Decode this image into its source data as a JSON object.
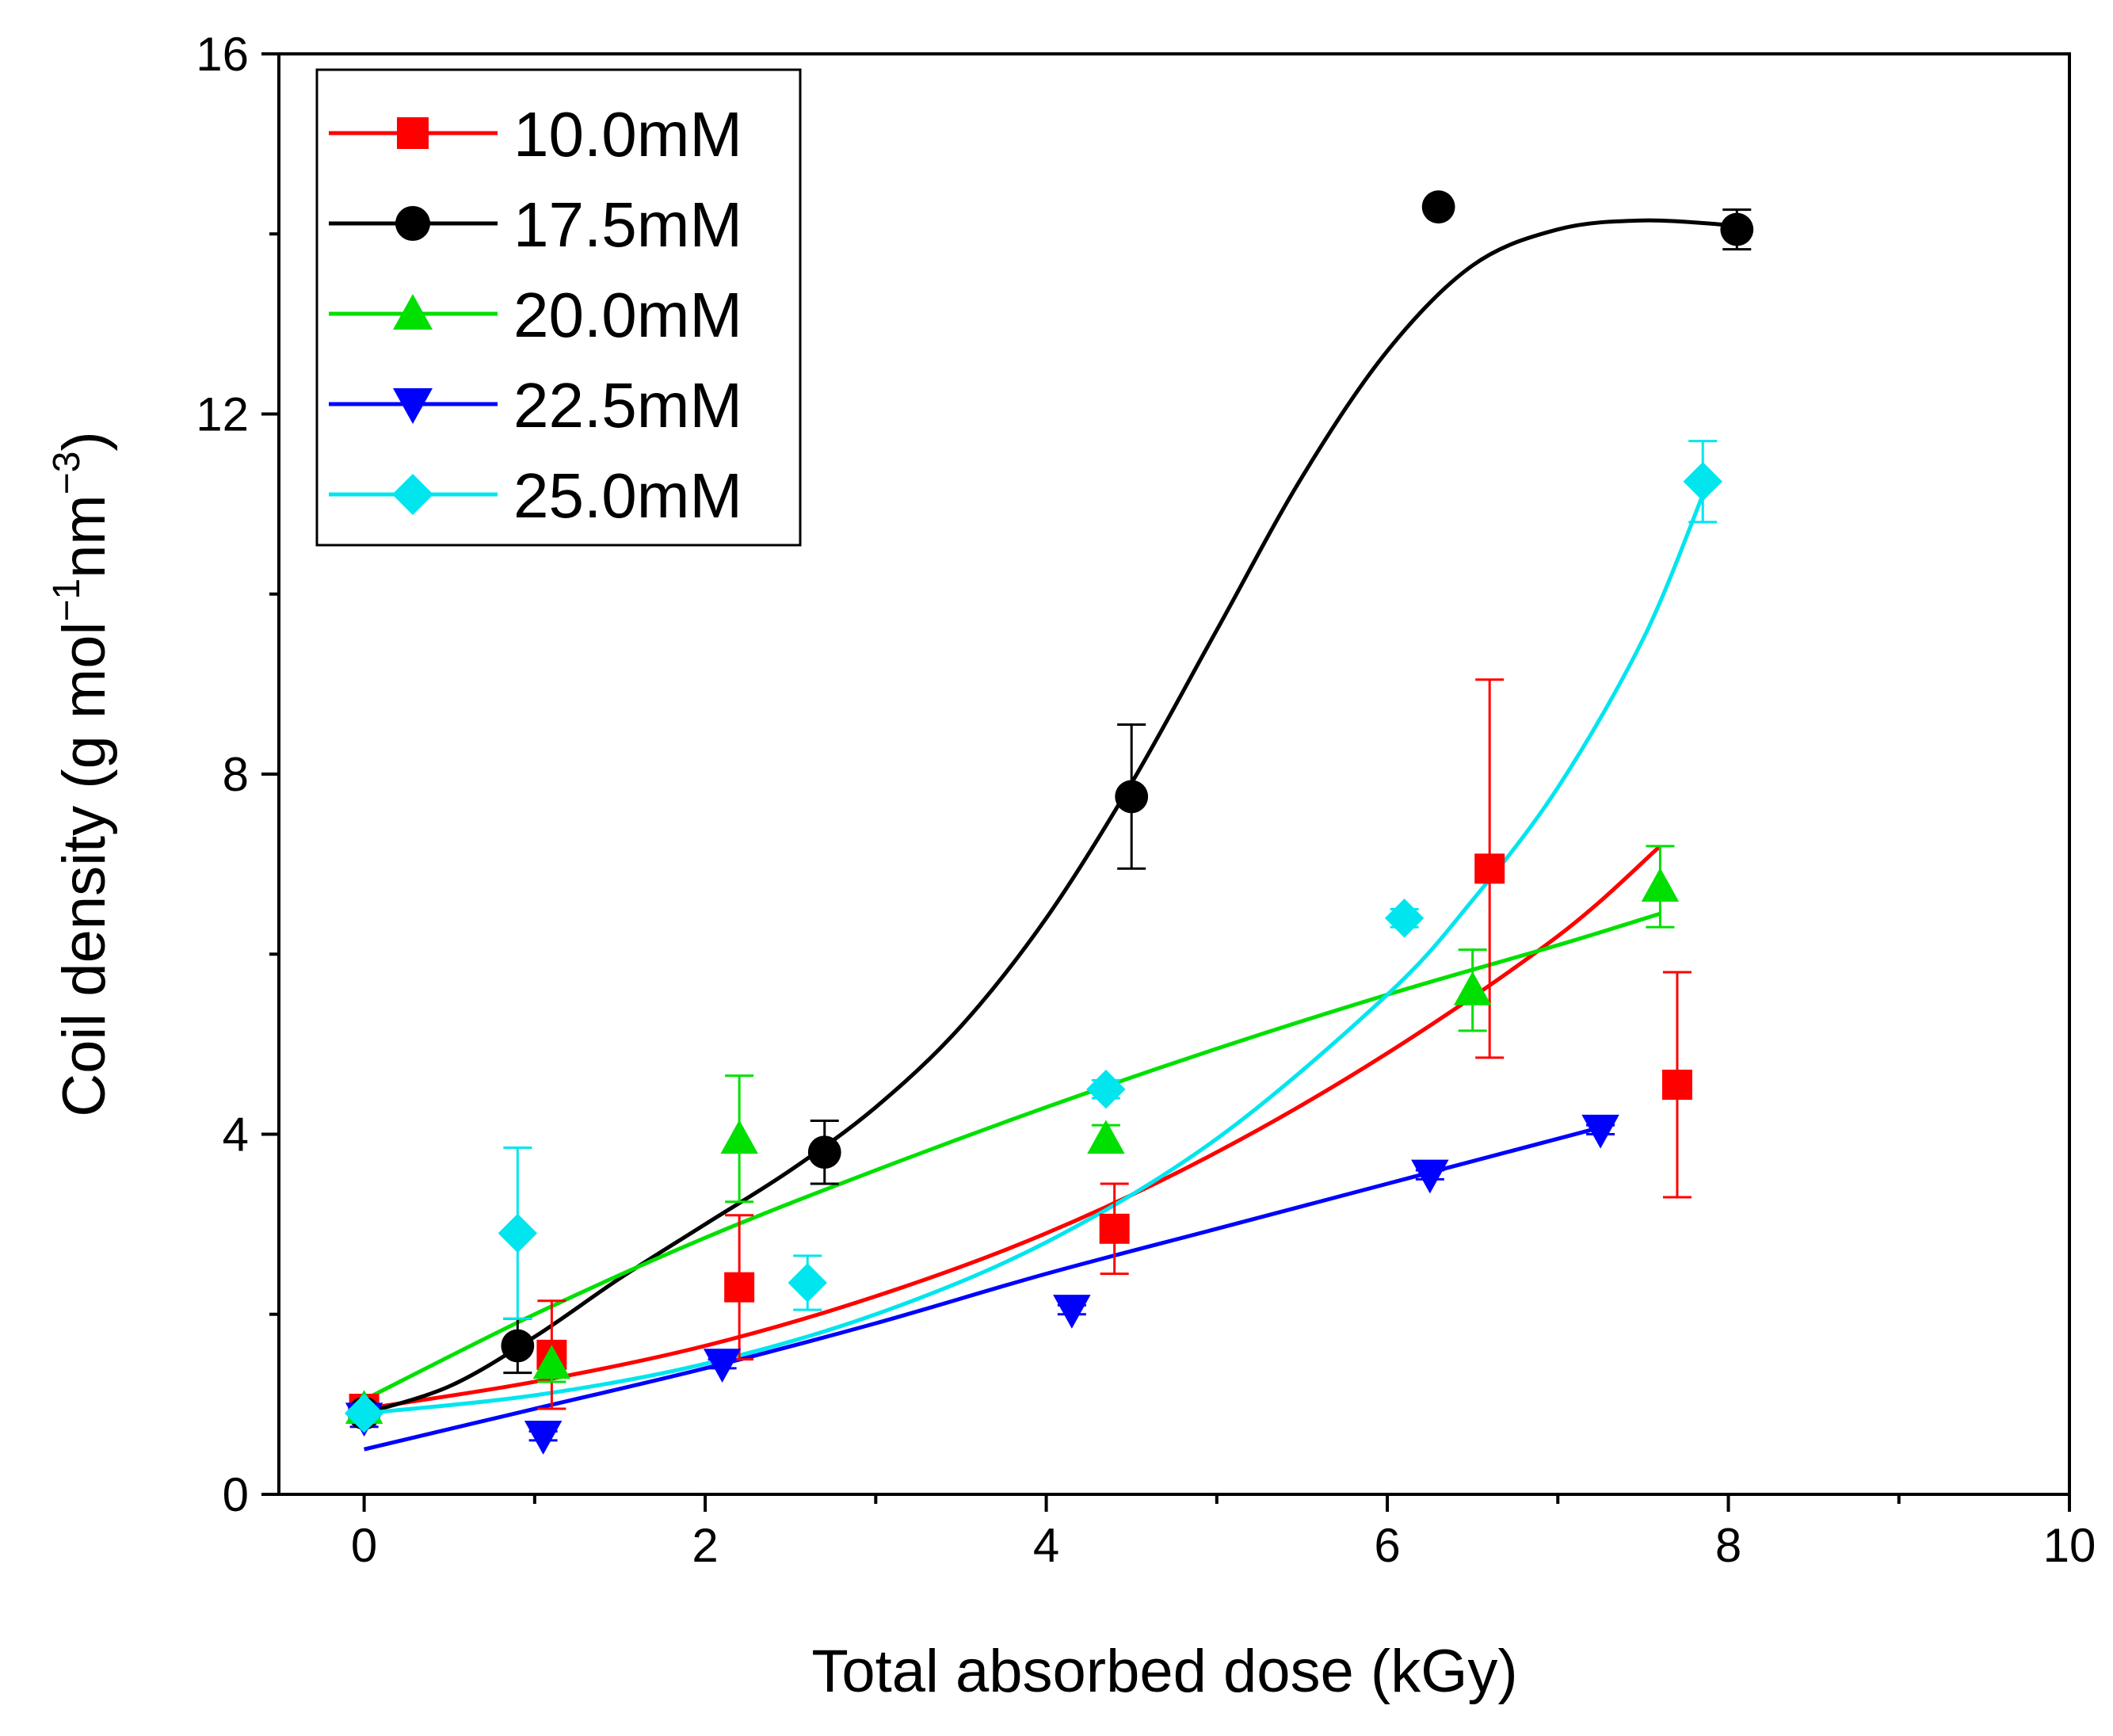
{
  "chart_data": {
    "type": "scatter",
    "xlabel": "Total absorbed dose (kGy)",
    "ylabel_main": "Coil density (g mol",
    "ylabel_sup1": "−1",
    "ylabel_mid": "nm",
    "ylabel_sup2": "−3",
    "ylabel_end": ")",
    "xlim": [
      -0.5,
      10
    ],
    "ylim": [
      0,
      16
    ],
    "xticks": [
      "0",
      "2",
      "4",
      "6",
      "8",
      "10"
    ],
    "yticks": [
      "0",
      "4",
      "8",
      "12",
      "16"
    ],
    "legend_position": "top-left",
    "series": [
      {
        "name": "10.0mM",
        "color": "#ff0000",
        "marker": "square",
        "points": [
          {
            "x": 0.0,
            "y": 0.95,
            "err": 0.1
          },
          {
            "x": 1.1,
            "y": 1.55,
            "err": 0.6
          },
          {
            "x": 2.2,
            "y": 2.3,
            "err": 0.8
          },
          {
            "x": 4.4,
            "y": 2.95,
            "err": 0.5
          },
          {
            "x": 6.6,
            "y": 6.95,
            "err": 2.1
          },
          {
            "x": 7.7,
            "y": 4.55,
            "err": 1.25
          }
        ],
        "fit": [
          [
            0,
            0.95
          ],
          [
            1,
            1.25
          ],
          [
            2,
            1.65
          ],
          [
            3,
            2.2
          ],
          [
            4,
            2.9
          ],
          [
            5,
            3.8
          ],
          [
            6,
            4.9
          ],
          [
            7,
            6.2
          ],
          [
            7.6,
            7.2
          ]
        ]
      },
      {
        "name": "17.5mM",
        "color": "#000000",
        "marker": "circle",
        "points": [
          {
            "x": 0.0,
            "y": 0.9,
            "err": 0.1
          },
          {
            "x": 0.9,
            "y": 1.65,
            "err": 0.3
          },
          {
            "x": 2.7,
            "y": 3.8,
            "err": 0.35
          },
          {
            "x": 4.5,
            "y": 7.75,
            "err": 0.8
          },
          {
            "x": 6.3,
            "y": 14.3,
            "err": 0.0
          },
          {
            "x": 8.05,
            "y": 14.05,
            "err": 0.22
          }
        ],
        "fit": [
          [
            0,
            0.9
          ],
          [
            0.5,
            1.2
          ],
          [
            1,
            1.75
          ],
          [
            1.5,
            2.4
          ],
          [
            2,
            3.0
          ],
          [
            2.5,
            3.6
          ],
          [
            3,
            4.3
          ],
          [
            3.5,
            5.2
          ],
          [
            4,
            6.4
          ],
          [
            4.5,
            7.9
          ],
          [
            5,
            9.6
          ],
          [
            5.5,
            11.3
          ],
          [
            6,
            12.7
          ],
          [
            6.5,
            13.65
          ],
          [
            7,
            14.05
          ],
          [
            7.5,
            14.15
          ],
          [
            8,
            14.1
          ]
        ]
      },
      {
        "name": "20.0mM",
        "color": "#00e000",
        "marker": "triangle-up",
        "points": [
          {
            "x": 0.0,
            "y": 0.95,
            "err": 0.1
          },
          {
            "x": 1.1,
            "y": 1.45,
            "err": 0.2
          },
          {
            "x": 2.2,
            "y": 3.95,
            "err": 0.7
          },
          {
            "x": 4.35,
            "y": 3.95,
            "err": 0.15
          },
          {
            "x": 6.5,
            "y": 5.6,
            "err": 0.45
          },
          {
            "x": 7.6,
            "y": 6.75,
            "err": 0.45
          }
        ],
        "fit": [
          [
            0,
            1.05
          ],
          [
            1,
            2.0
          ],
          [
            2,
            2.85
          ],
          [
            3,
            3.6
          ],
          [
            4,
            4.3
          ],
          [
            5,
            4.95
          ],
          [
            6,
            5.55
          ],
          [
            7,
            6.1
          ],
          [
            7.6,
            6.45
          ]
        ]
      },
      {
        "name": "22.5mM",
        "color": "#0000ff",
        "marker": "triangle-down",
        "points": [
          {
            "x": 0.0,
            "y": 0.85,
            "err": 0.1
          },
          {
            "x": 1.05,
            "y": 0.65,
            "err": 0.05
          },
          {
            "x": 2.1,
            "y": 1.45,
            "err": 0.05
          },
          {
            "x": 4.15,
            "y": 2.05,
            "err": 0.05
          },
          {
            "x": 6.25,
            "y": 3.55,
            "err": 0.05
          },
          {
            "x": 7.25,
            "y": 4.05,
            "err": 0.05
          }
        ],
        "fit": [
          [
            0,
            0.5
          ],
          [
            1,
            0.95
          ],
          [
            2,
            1.4
          ],
          [
            3,
            1.9
          ],
          [
            4,
            2.45
          ],
          [
            5,
            2.95
          ],
          [
            6,
            3.45
          ],
          [
            7,
            3.95
          ],
          [
            7.3,
            4.1
          ]
        ]
      },
      {
        "name": "25.0mM",
        "color": "#00e5ee",
        "marker": "diamond",
        "points": [
          {
            "x": 0.0,
            "y": 0.9,
            "err": 0.1
          },
          {
            "x": 0.9,
            "y": 2.9,
            "err": 0.95
          },
          {
            "x": 2.6,
            "y": 2.35,
            "err": 0.3
          },
          {
            "x": 4.35,
            "y": 4.5,
            "err": 0.1
          },
          {
            "x": 6.1,
            "y": 6.4,
            "err": 0.1
          },
          {
            "x": 7.85,
            "y": 11.25,
            "err": 0.45
          }
        ],
        "fit": [
          [
            0,
            0.9
          ],
          [
            1,
            1.1
          ],
          [
            2,
            1.45
          ],
          [
            3,
            2.0
          ],
          [
            4,
            2.8
          ],
          [
            5,
            3.95
          ],
          [
            6,
            5.55
          ],
          [
            6.5,
            6.6
          ],
          [
            7,
            7.85
          ],
          [
            7.5,
            9.5
          ],
          [
            7.85,
            11.1
          ]
        ]
      }
    ]
  }
}
